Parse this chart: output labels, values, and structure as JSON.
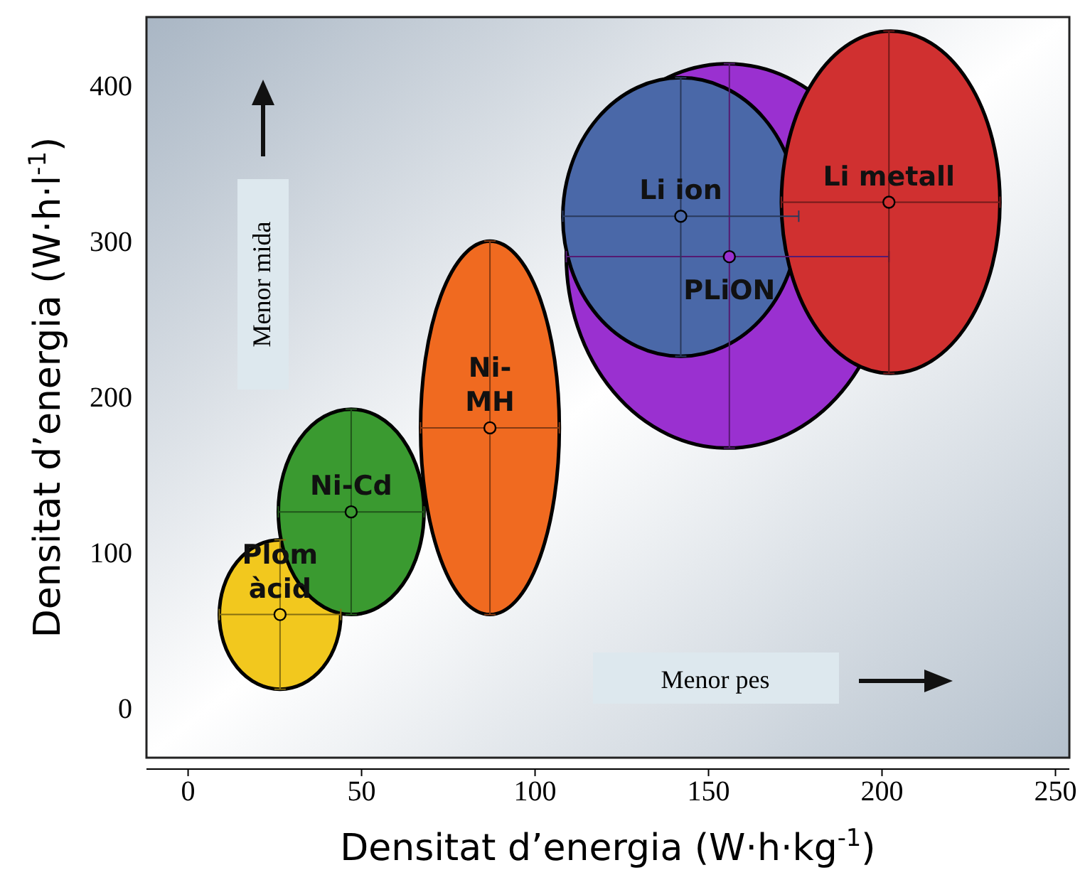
{
  "chart_data": {
    "type": "scatter",
    "xlabel": "Densitat d’energia (W·h·kg$^{-1}$)",
    "ylabel": "Densitat d’energia (W·h·l$^{-1}$)",
    "xlim": [
      -12,
      254
    ],
    "ylim": [
      -32,
      444
    ],
    "xticks": [
      0,
      50,
      100,
      150,
      200,
      250
    ],
    "yticks": [
      0,
      100,
      200,
      300,
      400
    ],
    "grid": false,
    "marker": "circle",
    "series": [
      {
        "name": "Plom\nàcid",
        "color": "#f2c81e",
        "x": [
          26.5
        ],
        "values": [
          60
        ],
        "xerrors": [
          [
            9,
            44
          ]
        ],
        "errors": [
          [
            12,
            108
          ]
        ]
      },
      {
        "name": "Ni-Cd",
        "color": "#3a9a30",
        "x": [
          47
        ],
        "values": [
          126
        ],
        "xerrors": [
          [
            26,
            68
          ]
        ],
        "errors": [
          [
            60,
            192
          ]
        ]
      },
      {
        "name": "Ni-\nMH",
        "color": "#f06a20",
        "x": [
          87
        ],
        "values": [
          180
        ],
        "xerrors": [
          [
            67,
            107
          ]
        ],
        "errors": [
          [
            60,
            300
          ]
        ]
      },
      {
        "name": "PLiON",
        "color": "#9a30d0",
        "x": [
          156
        ],
        "values": [
          290
        ],
        "xerrors": [
          [
            109,
            202
          ]
        ],
        "errors": [
          [
            167,
            414
          ]
        ]
      },
      {
        "name": "Li ion",
        "color": "#4a68a8",
        "x": [
          142
        ],
        "values": [
          316
        ],
        "xerrors": [
          [
            108,
            176
          ]
        ],
        "errors": [
          [
            226,
            405
          ]
        ]
      },
      {
        "name": "Li metall",
        "color": "#d03030",
        "x": [
          202
        ],
        "values": [
          325
        ],
        "xerrors": [
          [
            171,
            234
          ]
        ],
        "errors": [
          [
            215,
            435
          ]
        ]
      }
    ],
    "annotations": [
      "Menor mida",
      "Menor pes"
    ]
  }
}
